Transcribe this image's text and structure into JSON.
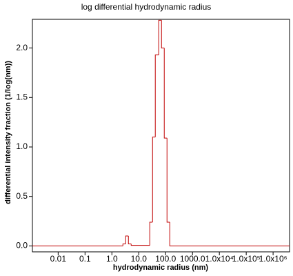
{
  "chart_data": {
    "type": "histogram",
    "title": "log differential hydrodynamic radius",
    "x_label": "hydrodynamic radius (nm)",
    "y_label": "differential intensity fraction (1/log(nm))",
    "x_log": true,
    "color": "#c00000",
    "bins": [
      2.57,
      3.26,
      4.12,
      5.22,
      25.7,
      32.6,
      41.2,
      55.4,
      70.2,
      88.9,
      112.5,
      142.6
    ],
    "counts": [
      0.02,
      0.1,
      0.02,
      0.005,
      0.24,
      1.1,
      1.93,
      2.28,
      2.0,
      1.09,
      0.24
    ],
    "xlim": [
      0.0011,
      4100000
    ],
    "ylim": [
      -0.06,
      2.29
    ],
    "xticks": [
      0.01,
      0.1,
      {
        "value": 1,
        "label": "1.0"
      },
      {
        "value": 10,
        "label": "10.0"
      },
      {
        "value": 100,
        "label": "100.0"
      },
      {
        "value": 1000,
        "label": "1000.0"
      },
      {
        "value": 10000,
        "label": "1.0x10⁴"
      },
      {
        "value": 100000,
        "label": "1.0x10⁵"
      },
      {
        "value": 1000000,
        "label": "1.0x10⁶"
      }
    ],
    "yticks": [
      {
        "value": 0,
        "label": "0.0"
      },
      0.5,
      {
        "value": 1,
        "label": "1.0"
      },
      1.5,
      {
        "value": 2,
        "label": "2.0"
      }
    ]
  }
}
